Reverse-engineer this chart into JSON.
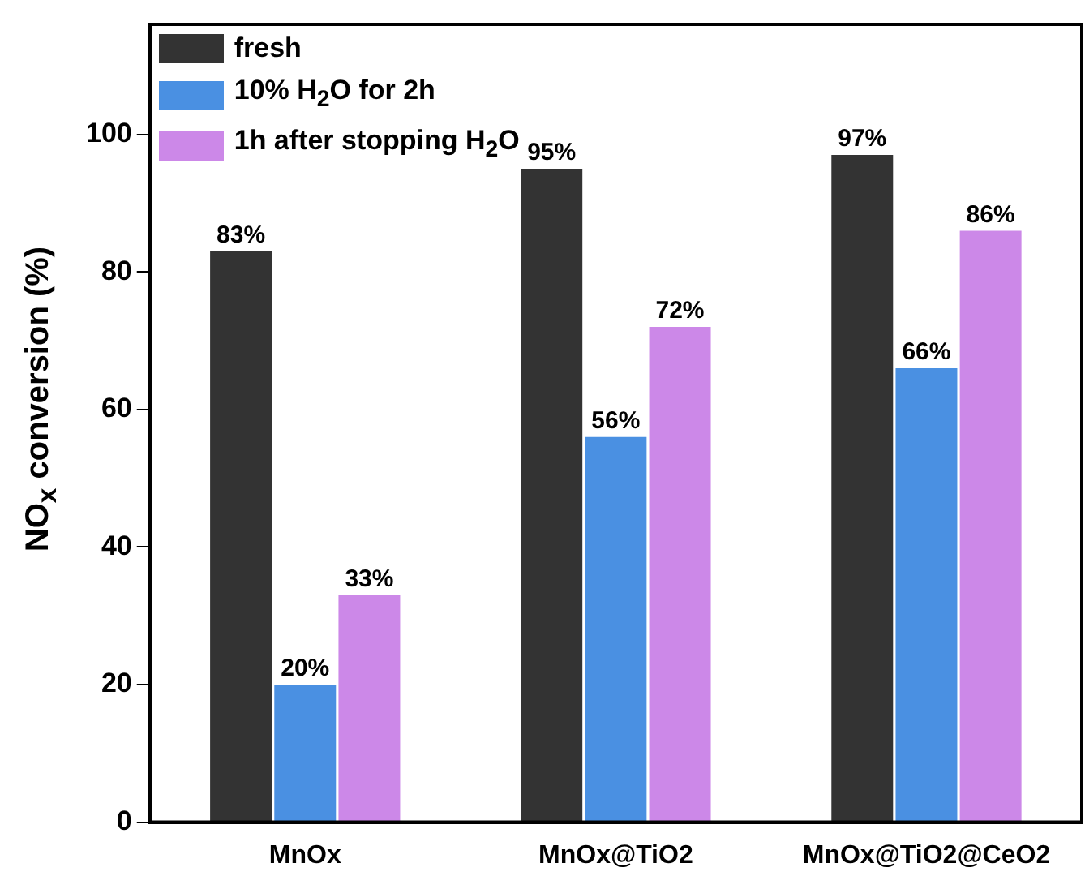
{
  "chart_data": {
    "type": "bar",
    "ylabel": "NO$_{x}$ conversion (%)",
    "categories": [
      "MnOx",
      "MnOx@TiO2",
      "MnOx@TiO2@CeO2"
    ],
    "series": [
      {
        "name": "fresh",
        "color": "#333333",
        "values": [
          83,
          95,
          97
        ],
        "value_labels": [
          "83%",
          "95%",
          "97%"
        ]
      },
      {
        "name": "10% H$_{2}$O for 2h",
        "color": "#4a90e2",
        "values": [
          20,
          56,
          66
        ],
        "value_labels": [
          "20%",
          "56%",
          "66%"
        ]
      },
      {
        "name": "1h after stopping H$_{2}$O",
        "color": "#cc88e8",
        "values": [
          33,
          72,
          86
        ],
        "value_labels": [
          "33%",
          "72%",
          "86%"
        ]
      }
    ],
    "ylim": [
      0,
      116
    ],
    "yticks": [
      0,
      20,
      40,
      60,
      80,
      100
    ],
    "grid": false,
    "legend": "top left"
  }
}
